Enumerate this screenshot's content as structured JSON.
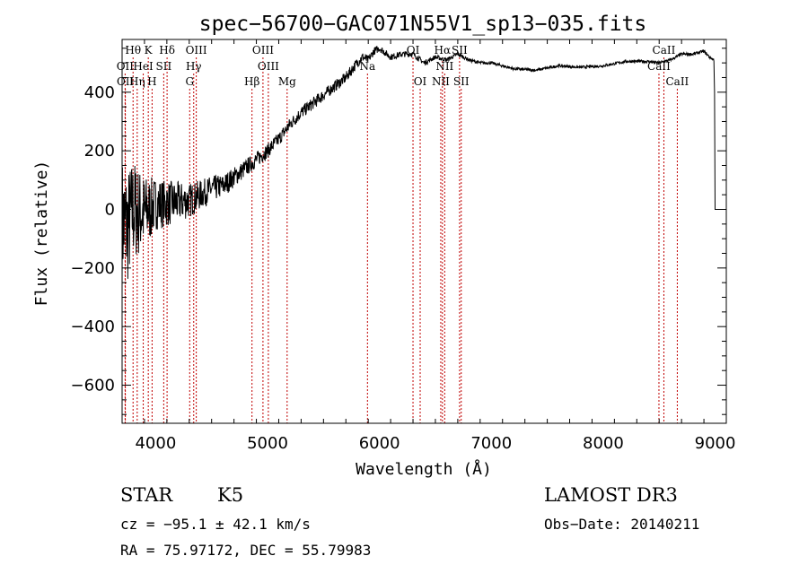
{
  "chart_data": {
    "type": "line",
    "title": "spec−56700−GAC071N55V1_sp13−035.fits",
    "xlabel": "Wavelength (Å)",
    "ylabel": "Flux (relative)",
    "xlim": [
      3700,
      9100
    ],
    "ylim": [
      -730,
      580
    ],
    "xticks": [
      4000,
      5000,
      6000,
      7000,
      8000,
      9000
    ],
    "xtick_labels": [
      "4000",
      "5000",
      "6000",
      "7000",
      "8000",
      "9000"
    ],
    "yticks": [
      -600,
      -400,
      -200,
      0,
      200,
      400
    ],
    "ytick_labels": [
      "−600",
      "−400",
      "−200",
      "0",
      "200",
      "400"
    ],
    "series": [
      {
        "name": "flux",
        "envelope_x": [
          3700,
          3750,
          3800,
          3850,
          3900,
          3950,
          4000,
          4100,
          4200,
          4300,
          4400,
          4500,
          4600,
          4700,
          4800,
          4900,
          5000,
          5100,
          5200,
          5300,
          5400,
          5500,
          5600,
          5700,
          5800,
          5850,
          5900,
          5950,
          6000,
          6100,
          6200,
          6300,
          6400,
          6500,
          6600,
          6700,
          6800,
          6900,
          7000,
          7100,
          7200,
          7400,
          7600,
          7800,
          8000,
          8200,
          8400,
          8500,
          8600,
          8700,
          8800,
          8900,
          8950,
          8990,
          9000
        ],
        "envelope_y": [
          -40,
          -60,
          0,
          -10,
          -10,
          0,
          20,
          20,
          25,
          30,
          50,
          70,
          80,
          110,
          140,
          170,
          200,
          240,
          290,
          330,
          360,
          390,
          420,
          450,
          500,
          520,
          510,
          540,
          550,
          520,
          530,
          530,
          500,
          520,
          510,
          530,
          510,
          500,
          500,
          490,
          480,
          475,
          490,
          485,
          490,
          505,
          505,
          500,
          510,
          530,
          530,
          540,
          520,
          510,
          0
        ],
        "noise_amplitude_x": [
          3700,
          3800,
          3900,
          4000,
          4200,
          4400,
          4600,
          4800,
          5000,
          5300,
          5600,
          5800,
          6000,
          6500,
          7000,
          9000
        ],
        "noise_amplitude_y": [
          220,
          180,
          130,
          90,
          70,
          50,
          40,
          30,
          25,
          22,
          20,
          18,
          12,
          8,
          5,
          5
        ]
      }
    ],
    "emission_lines": [
      {
        "label": "Hθ",
        "x": 3798,
        "row": 0
      },
      {
        "label": "K",
        "x": 3934,
        "row": 0
      },
      {
        "label": "Hδ",
        "x": 4102,
        "row": 0
      },
      {
        "label": "OIII",
        "x": 4363,
        "row": 0
      },
      {
        "label": "OIII",
        "x": 4959,
        "row": 0
      },
      {
        "label": "OI",
        "x": 6300,
        "row": 0
      },
      {
        "label": "Hα",
        "x": 6563,
        "row": 0
      },
      {
        "label": "SII",
        "x": 6716,
        "row": 0
      },
      {
        "label": "CaII",
        "x": 8542,
        "row": 0
      },
      {
        "label": "OII",
        "x": 3727,
        "row": 1
      },
      {
        "label": "HeI",
        "x": 3889,
        "row": 1
      },
      {
        "label": "SII",
        "x": 4072,
        "row": 1
      },
      {
        "label": "Hγ",
        "x": 4340,
        "row": 1
      },
      {
        "label": "OIII",
        "x": 5007,
        "row": 1
      },
      {
        "label": "Na",
        "x": 5893,
        "row": 1
      },
      {
        "label": "NII",
        "x": 6583,
        "row": 1
      },
      {
        "label": "CaII",
        "x": 8498,
        "row": 1
      },
      {
        "label": "OII",
        "x": 3729,
        "row": 2
      },
      {
        "label": "Hη",
        "x": 3835,
        "row": 2
      },
      {
        "label": "H",
        "x": 3968,
        "row": 2
      },
      {
        "label": "G",
        "x": 4304,
        "row": 2
      },
      {
        "label": "Hβ",
        "x": 4861,
        "row": 2
      },
      {
        "label": "Mg",
        "x": 5175,
        "row": 2
      },
      {
        "label": "OI",
        "x": 6364,
        "row": 2
      },
      {
        "label": "NII",
        "x": 6548,
        "row": 2
      },
      {
        "label": "SII",
        "x": 6731,
        "row": 2
      },
      {
        "label": "CaII",
        "x": 8662,
        "row": 2
      }
    ]
  },
  "info": {
    "object_type": "STAR",
    "subclass": "K5",
    "survey": "LAMOST DR3",
    "cz": "cz = −95.1 ± 42.1 km/s",
    "obs_date": "Obs−Date: 20140211",
    "coords": "RA =  75.97172, DEC =  55.79983"
  },
  "colors": {
    "spectrum": "#000000",
    "line_marker": "#c00000",
    "axes": "#000000"
  }
}
